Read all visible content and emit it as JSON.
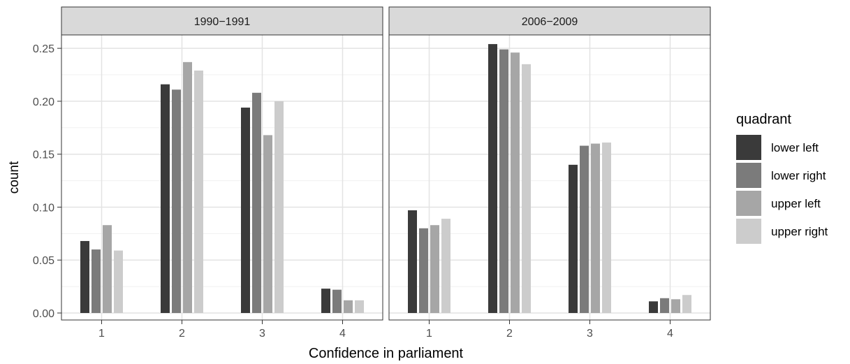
{
  "chart_data": {
    "type": "bar",
    "title": "",
    "xlabel": "Confidence in parliament",
    "ylabel": "count",
    "ylim": [
      0,
      0.26
    ],
    "yticks": [
      0.0,
      0.05,
      0.1,
      0.15,
      0.2,
      0.25
    ],
    "ytick_labels": [
      "0.00",
      "0.05",
      "0.10",
      "0.15",
      "0.20",
      "0.25"
    ],
    "categories": [
      "1",
      "2",
      "3",
      "4"
    ],
    "grid": true,
    "legend": {
      "title": "quadrant",
      "placement": "right",
      "entries": [
        "lower left",
        "lower right",
        "upper left",
        "upper right"
      ]
    },
    "series_colors": [
      "#3a3a3a",
      "#7b7b7b",
      "#a6a6a6",
      "#cccccc"
    ],
    "panels": [
      {
        "label": "1990-1991",
        "series": [
          {
            "name": "lower left",
            "values": [
              0.068,
              0.216,
              0.194,
              0.023
            ]
          },
          {
            "name": "lower right",
            "values": [
              0.06,
              0.211,
              0.208,
              0.022
            ]
          },
          {
            "name": "upper left",
            "values": [
              0.083,
              0.237,
              0.168,
              0.012
            ]
          },
          {
            "name": "upper right",
            "values": [
              0.059,
              0.229,
              0.2,
              0.012
            ]
          }
        ]
      },
      {
        "label": "2006-2009",
        "series": [
          {
            "name": "lower left",
            "values": [
              0.097,
              0.254,
              0.14,
              0.011
            ]
          },
          {
            "name": "lower right",
            "values": [
              0.08,
              0.249,
              0.158,
              0.014
            ]
          },
          {
            "name": "upper left",
            "values": [
              0.083,
              0.246,
              0.16,
              0.013
            ]
          },
          {
            "name": "upper right",
            "values": [
              0.089,
              0.235,
              0.161,
              0.017
            ]
          }
        ]
      }
    ]
  }
}
